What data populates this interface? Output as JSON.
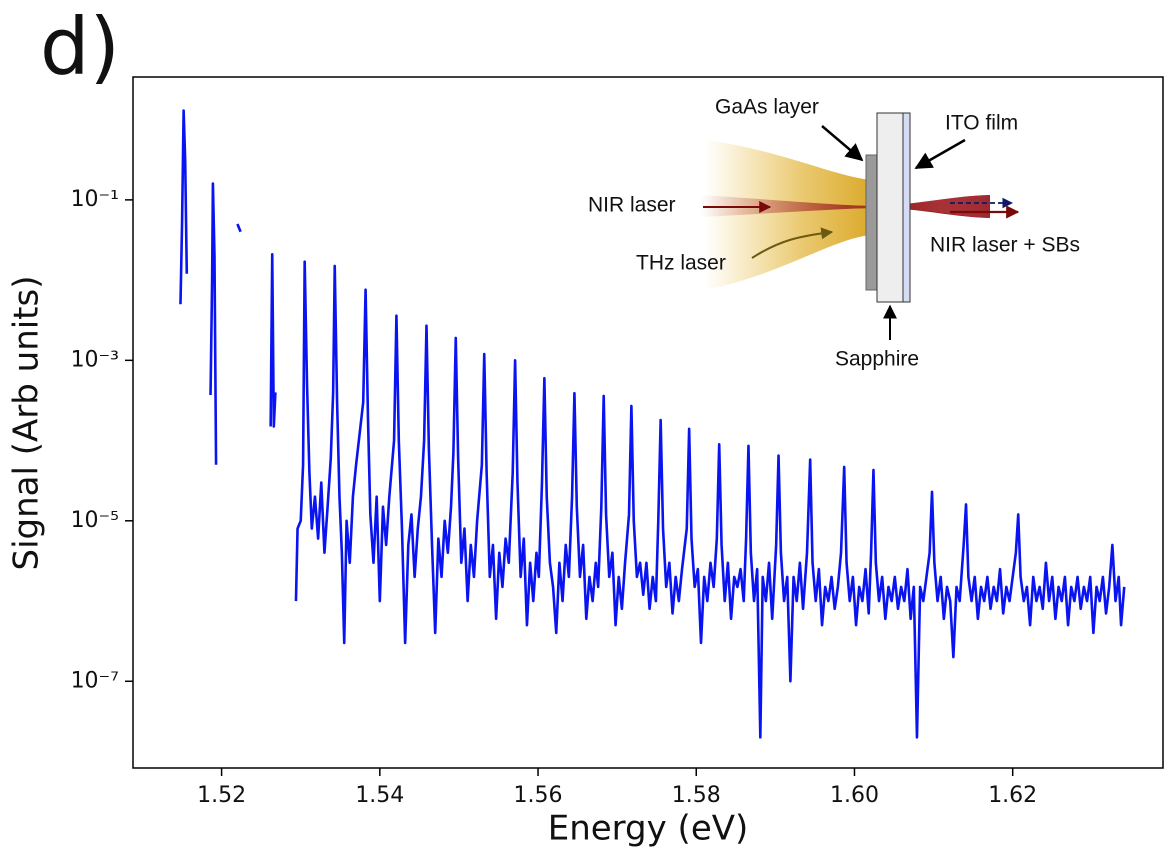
{
  "chart_data": {
    "type": "line",
    "panel_label": "d)",
    "xlabel": "Energy (eV)",
    "ylabel": "Signal (Arb units)",
    "yscale": "log",
    "xlim": [
      1.5088,
      1.639
    ],
    "ylim": [
      8.3e-09,
      3.4
    ],
    "xticks": [
      1.52,
      1.54,
      1.56,
      1.58,
      {
        "value": 1.6,
        "label": "1.60"
      },
      1.62
    ],
    "yticks": [
      {
        "value": 0.1,
        "label": "10⁻¹"
      },
      {
        "value": 0.001,
        "label": "10⁻³"
      },
      {
        "value": 1e-05,
        "label": "10⁻⁵"
      },
      {
        "value": 1e-07,
        "label": "10⁻⁷"
      }
    ],
    "annotations": [
      "GaAs layer",
      "ITO film",
      "NIR laser",
      "THz laser",
      "NIR laser + SBs",
      "Sapphire"
    ],
    "x": [
      1.5148,
      1.515,
      1.5152,
      1.5154,
      1.5156,
      null,
      1.5186,
      1.5188,
      1.5189,
      1.5191,
      1.5193,
      null,
      1.522,
      1.5224,
      null,
      1.5262,
      1.5264,
      1.5266,
      1.5268,
      null,
      1.5294,
      1.5296,
      1.53,
      1.5303,
      1.5305,
      1.5308,
      1.5311,
      1.5314,
      1.5318,
      1.5322,
      1.5326,
      1.533,
      1.5334,
      1.5338,
      1.5341,
      1.5343,
      1.5346,
      1.5349,
      1.5352,
      1.5355,
      1.5358,
      1.5362,
      1.5366,
      1.537,
      1.5379,
      1.5382,
      1.5385,
      1.5388,
      1.5392,
      1.5396,
      1.54,
      1.5404,
      1.5408,
      1.5412,
      1.5418,
      1.5421,
      1.5424,
      1.5428,
      1.5432,
      1.5436,
      1.544,
      1.5444,
      1.5448,
      1.5452,
      1.5456,
      1.5459,
      1.5462,
      1.5466,
      1.547,
      1.5474,
      1.5478,
      1.5482,
      1.5486,
      1.549,
      1.5493,
      1.5496,
      1.5499,
      1.5503,
      1.5507,
      1.5511,
      1.5515,
      1.5519,
      1.5523,
      1.5529,
      1.5532,
      1.5535,
      1.5539,
      1.5543,
      1.5547,
      1.5551,
      1.5555,
      1.5559,
      1.5563,
      1.5568,
      1.5571,
      1.5574,
      1.5578,
      1.5582,
      1.5586,
      1.559,
      1.5594,
      1.5598,
      1.5601,
      1.5605,
      1.5608,
      1.5611,
      1.5615,
      1.5619,
      1.5623,
      1.5627,
      1.5631,
      1.5635,
      1.5639,
      1.5643,
      1.5646,
      1.5649,
      1.5653,
      1.5657,
      1.5661,
      1.5665,
      1.5669,
      1.5673,
      1.5676,
      1.568,
      1.5683,
      1.5686,
      1.569,
      1.5694,
      1.5698,
      1.5702,
      1.5706,
      1.571,
      1.5715,
      1.5718,
      1.5721,
      1.5725,
      1.5729,
      1.5733,
      1.5737,
      1.5741,
      1.5745,
      1.5749,
      1.5752,
      1.5755,
      1.5758,
      1.5762,
      1.5766,
      1.577,
      1.5774,
      1.5778,
      1.5782,
      1.5788,
      1.5791,
      1.5794,
      1.5798,
      1.5802,
      1.5806,
      1.581,
      1.5814,
      1.5818,
      1.5822,
      1.5826,
      1.5829,
      1.5832,
      1.5836,
      1.584,
      1.5844,
      1.5848,
      1.5852,
      1.5856,
      1.586,
      1.5863,
      1.5866,
      1.5869,
      1.5873,
      1.5877,
      1.5881,
      1.5884,
      1.5888,
      1.5892,
      1.5896,
      1.5901,
      1.5904,
      1.5907,
      1.5911,
      1.5915,
      1.5919,
      1.5923,
      1.5927,
      1.5931,
      1.5935,
      1.594,
      1.5944,
      1.5947,
      1.5951,
      1.5955,
      1.5959,
      1.5963,
      1.5967,
      1.5971,
      1.5975,
      1.5979,
      1.5983,
      1.5987,
      1.599,
      1.5994,
      1.5998,
      1.6002,
      1.6006,
      1.601,
      1.6014,
      1.6018,
      1.6021,
      1.6024,
      1.6027,
      1.6031,
      1.6035,
      1.6039,
      1.6043,
      1.6047,
      1.6051,
      1.6055,
      1.6059,
      1.6063,
      1.6067,
      1.6071,
      1.6075,
      1.6079,
      1.6083,
      1.6087,
      1.6091,
      1.6095,
      1.6098,
      1.6101,
      1.6105,
      1.6109,
      1.6113,
      1.6117,
      1.6121,
      1.6125,
      1.6129,
      1.6133,
      1.6138,
      1.6141,
      1.6144,
      1.6148,
      1.6152,
      1.6156,
      1.616,
      1.6164,
      1.6168,
      1.6172,
      1.6176,
      1.618,
      1.6184,
      1.6188,
      1.6192,
      1.6196,
      1.62,
      1.6204,
      1.6207,
      1.621,
      1.6214,
      1.6218,
      1.6222,
      1.6226,
      1.623,
      1.6234,
      1.6238,
      1.6242,
      1.6246,
      1.625,
      1.6254,
      1.6258,
      1.6262,
      1.6266,
      1.627,
      1.6274,
      1.6278,
      1.6282,
      1.6286,
      1.629,
      1.6294,
      1.6298,
      1.6302,
      1.6306,
      1.631,
      1.6314,
      1.6318,
      1.6322,
      1.6326,
      1.633,
      1.6334,
      1.6337,
      1.6341
    ],
    "series": [
      {
        "color": "#0a14f0",
        "values": [
          0.005,
          0.05,
          1.3,
          0.3,
          0.012,
          null,
          0.00037,
          0.01,
          0.16,
          0.02,
          5e-05,
          null,
          0.05,
          0.04,
          null,
          0.00015,
          0.021,
          0.00015,
          0.0004,
          null,
          1e-06,
          8e-06,
          1e-05,
          5e-05,
          0.017,
          0.0005,
          4e-05,
          8e-06,
          2e-05,
          6e-06,
          3e-05,
          4e-06,
          1.5e-05,
          6e-05,
          0.0004,
          0.015,
          0.0003,
          2e-05,
          4e-06,
          3e-07,
          1e-05,
          3e-06,
          2e-05,
          5e-05,
          0.0003,
          0.0076,
          0.0002,
          1.2e-05,
          3e-06,
          2e-05,
          1e-06,
          1.5e-05,
          5e-06,
          2e-05,
          0.0001,
          0.0036,
          0.0001,
          8e-06,
          3e-07,
          5e-06,
          1.2e-05,
          2e-06,
          8e-06,
          2e-05,
          0.0001,
          0.0027,
          8e-05,
          5e-06,
          4e-07,
          6e-06,
          2e-06,
          1e-05,
          4e-06,
          1.5e-05,
          7e-05,
          0.0019,
          6e-05,
          3e-06,
          8e-06,
          1e-06,
          5e-06,
          2e-06,
          1e-05,
          5e-05,
          0.0012,
          4e-05,
          2e-06,
          5e-06,
          6e-07,
          4e-06,
          1.5e-06,
          6e-06,
          3e-06,
          4e-05,
          0.001,
          3e-05,
          2e-06,
          6e-06,
          5e-07,
          3e-06,
          1e-06,
          4e-06,
          2e-06,
          3e-05,
          0.0006,
          2e-05,
          3e-06,
          1.5e-06,
          4e-07,
          3e-06,
          1e-06,
          5e-06,
          2e-06,
          2e-05,
          0.00039,
          1.5e-05,
          2e-06,
          5e-06,
          6e-07,
          2e-06,
          1e-06,
          3e-06,
          1.5e-06,
          1.5e-05,
          0.00036,
          1.2e-05,
          2e-06,
          4e-06,
          5e-07,
          2e-06,
          8e-07,
          3e-06,
          1.2e-05,
          0.00027,
          1e-05,
          2e-06,
          3e-06,
          1.2e-06,
          3e-06,
          8e-07,
          2e-06,
          1e-06,
          1e-05,
          0.00018,
          8e-06,
          1.5e-06,
          3e-06,
          7e-07,
          2e-06,
          1e-06,
          2.5e-06,
          8e-06,
          0.00014,
          6e-06,
          1.5e-06,
          2.5e-06,
          3e-07,
          2e-06,
          1e-06,
          3e-06,
          1.5e-06,
          6e-06,
          9e-05,
          5e-06,
          1e-06,
          3e-06,
          6e-07,
          2e-06,
          1.5e-06,
          2.5e-06,
          1e-06,
          6e-06,
          8.6e-05,
          4e-06,
          1e-06,
          2.5e-06,
          2e-08,
          2e-06,
          1e-06,
          3e-06,
          6e-07,
          5e-06,
          6.5e-05,
          4e-06,
          1e-06,
          2e-06,
          1e-07,
          2e-06,
          1e-06,
          3e-06,
          8e-07,
          4e-06,
          5.8e-05,
          3e-06,
          1e-06,
          2.5e-06,
          5e-07,
          1.5e-06,
          1e-06,
          2e-06,
          8e-07,
          1.5e-06,
          4e-06,
          4.7e-05,
          3e-06,
          1e-06,
          2e-06,
          5e-07,
          1.5e-06,
          1e-06,
          2.5e-06,
          7e-07,
          4e-06,
          4.3e-05,
          3e-06,
          1e-06,
          2e-06,
          6e-07,
          1.5e-06,
          1e-06,
          2e-06,
          8e-07,
          1.5e-06,
          1e-06,
          2.5e-06,
          6e-07,
          1.5e-06,
          2e-08,
          1.5e-06,
          1e-06,
          2e-06,
          4e-06,
          2.3e-05,
          3e-06,
          1e-06,
          2e-06,
          6e-07,
          1.5e-06,
          1e-06,
          2e-07,
          1.5e-06,
          1e-06,
          5e-06,
          1.6e-05,
          2e-06,
          1e-06,
          2e-06,
          6e-07,
          1.5e-06,
          1e-06,
          2e-06,
          8e-07,
          1.5e-06,
          1e-06,
          2.5e-06,
          7e-07,
          1.5e-06,
          1e-06,
          2e-06,
          4e-06,
          1.2e-05,
          2e-06,
          1e-06,
          1.5e-06,
          5e-07,
          2e-06,
          1e-06,
          1.5e-06,
          8e-07,
          3e-06,
          1e-06,
          2e-06,
          6e-07,
          1.5e-06,
          1e-06,
          2e-06,
          5e-07,
          1.5e-06,
          1e-06,
          2e-06,
          8e-07,
          1.5e-06,
          1e-06,
          2e-06,
          4e-07,
          1.5e-06,
          1e-06,
          2e-06,
          7e-07,
          1.5e-06,
          5e-06,
          1e-06,
          2e-06,
          5e-07,
          1.5e-06
        ]
      }
    ]
  }
}
